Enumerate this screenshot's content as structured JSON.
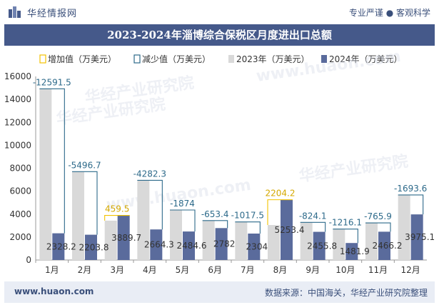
{
  "header": {
    "logo_text": "华经情报网",
    "tagline": "专业严谨 ● 客观科学",
    "logo_icon": "logo-icon"
  },
  "title": "2023-2024年淄博综合保税区月度进出口总额",
  "legend": {
    "increase": "增加值（万美元）",
    "decrease": "减少值（万美元）",
    "y2023": "2023年（万美元）",
    "y2024": "2024年（万美元）"
  },
  "footer": {
    "website": "www.huaon.com",
    "source": "数据来源：中国海关，华经产业研究院整理"
  },
  "colors": {
    "bar2023": "#d9d9d9",
    "bar2024": "#5a6b9c",
    "increase": "#f2c200",
    "decrease": "#2d6a8a",
    "label": "#2d6a8a",
    "header": "#45598a"
  },
  "chart_data": {
    "type": "bar",
    "categories": [
      "1月",
      "2月",
      "3月",
      "4月",
      "5月",
      "6月",
      "7月",
      "8月",
      "9月",
      "10月",
      "11月",
      "12月"
    ],
    "ylim": [
      0,
      16000
    ],
    "yticks": [
      0,
      2000,
      4000,
      6000,
      8000,
      10000,
      12000,
      14000,
      16000
    ],
    "series": [
      {
        "name": "2023年（万美元）",
        "values": [
          14919.7,
          7700.5,
          3430.2,
          6946.6,
          4358.6,
          3435.4,
          3321.5,
          3049.2,
          3279.9,
          2698.1,
          3232.1,
          5668.7
        ]
      },
      {
        "name": "2024年（万美元）",
        "values": [
          2328.2,
          2203.8,
          3889.7,
          2664.3,
          2484.6,
          2782,
          2304,
          5253.4,
          2455.8,
          1481.9,
          2466.2,
          3975.1
        ]
      }
    ],
    "change_values": [
      -12591.5,
      -5496.7,
      459.5,
      -4282.3,
      -1874,
      -653.4,
      -1017.5,
      2204.2,
      -824.1,
      -1216.1,
      -765.9,
      -1693.6
    ],
    "change_labels": [
      "-12591.5",
      "-5496.7",
      "459.5",
      "-4282.3",
      "-1874",
      "-653.4",
      "-1017.5",
      "2204.2",
      "-824.1",
      "-1216.1",
      "-765.9",
      "-1693.6"
    ],
    "value_labels_2024": [
      "2328.2",
      "2203.8",
      "3889.7",
      "2664.3",
      "2484.6",
      "2782",
      "2304",
      "5253.4",
      "2455.8",
      "1481.9",
      "2466.2",
      "3975.1"
    ],
    "watermark": "华经产业研究院",
    "watermark_url": "www.huaon.com"
  }
}
